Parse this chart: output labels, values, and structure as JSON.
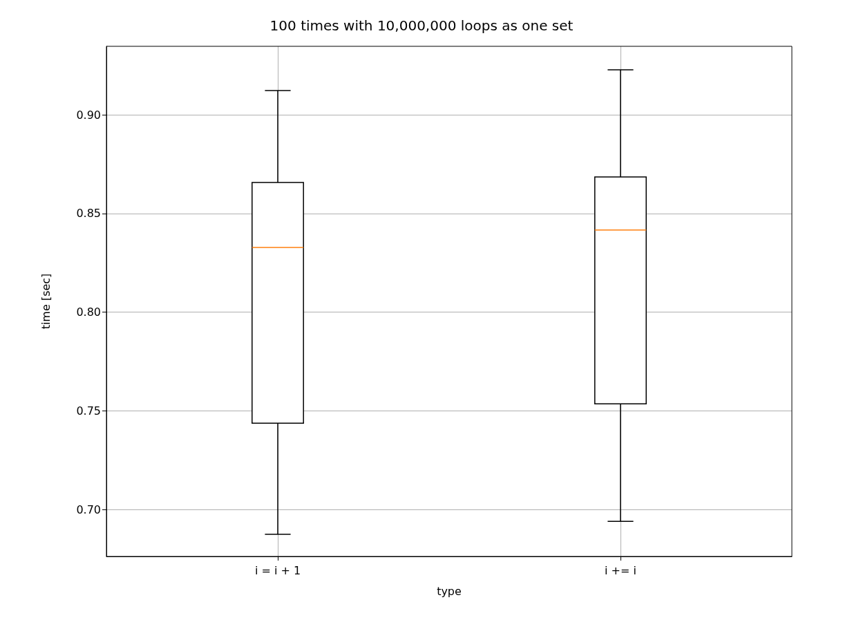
{
  "chart_data": {
    "type": "box",
    "title": "100 times with 10,000,000 loops as one set",
    "xlabel": "type",
    "ylabel": "time [sec]",
    "categories": [
      "i = i + 1",
      "i += i"
    ],
    "series": [
      {
        "color": "#000000",
        "boxes": [
          {
            "low": 0.6874,
            "q1": 0.7437,
            "median": 0.8328,
            "q3": 0.8657,
            "high": 0.9123
          },
          {
            "low": 0.694,
            "q1": 0.7535,
            "median": 0.8416,
            "q3": 0.8685,
            "high": 0.9228
          }
        ]
      }
    ],
    "ylim": [
      0.6762,
      0.9347
    ],
    "yticks": [
      {
        "value": 0.7,
        "label": "0.70"
      },
      {
        "value": 0.75,
        "label": "0.75"
      },
      {
        "value": 0.8,
        "label": "0.80"
      },
      {
        "value": 0.85,
        "label": "0.85"
      },
      {
        "value": 0.9,
        "label": "0.90"
      }
    ],
    "grid": true
  }
}
